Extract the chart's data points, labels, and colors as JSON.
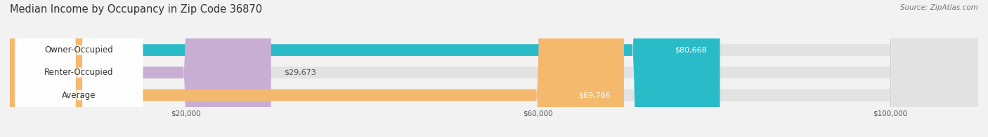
{
  "title": "Median Income by Occupancy in Zip Code 36870",
  "source": "Source: ZipAtlas.com",
  "categories": [
    "Owner-Occupied",
    "Renter-Occupied",
    "Average"
  ],
  "values": [
    80668,
    29673,
    69766
  ],
  "bar_colors": [
    "#29bbc8",
    "#c9aed4",
    "#f5b96e"
  ],
  "label_colors": [
    "#ffffff",
    "#555555",
    "#ffffff"
  ],
  "value_labels": [
    "$80,668",
    "$29,673",
    "$69,766"
  ],
  "x_ticks": [
    20000,
    60000,
    100000
  ],
  "x_tick_labels": [
    "$20,000",
    "$60,000",
    "$100,000"
  ],
  "xlim": [
    0,
    110000
  ],
  "background_color": "#f2f2f2",
  "bar_background_color": "#e2e2e2",
  "title_fontsize": 10.5,
  "label_fontsize": 8.5,
  "value_fontsize": 8.0
}
